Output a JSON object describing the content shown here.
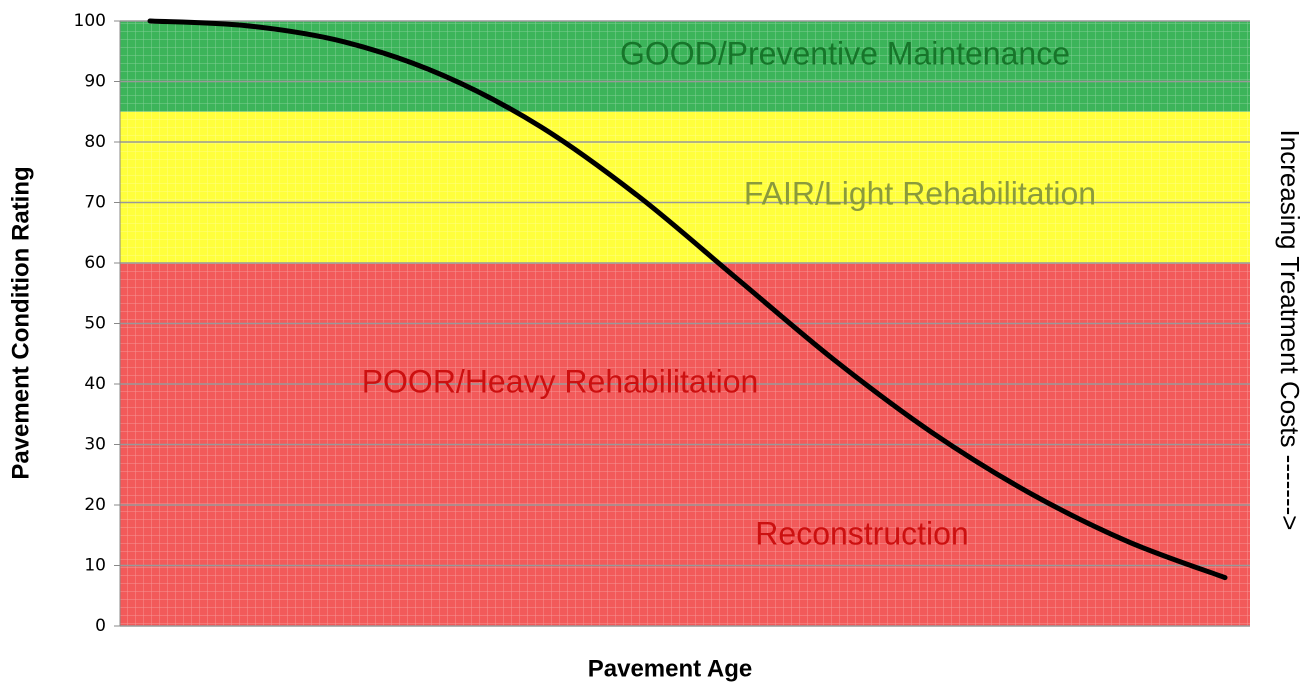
{
  "chart_data": {
    "type": "line",
    "x_label": "Pavement Age",
    "y_label": "Pavement Condition Rating",
    "side_note": "Increasing Treatment Costs ------->",
    "categories": [
      null,
      null,
      null,
      null,
      null,
      null,
      null,
      null,
      null,
      null,
      null,
      null
    ],
    "series": [
      {
        "color": "#000000",
        "values": [
          100,
          99.2,
          96.5,
          91,
          82.5,
          71,
          57.5,
          44,
          32,
          22,
          14,
          8
        ]
      }
    ],
    "ylim": [
      0,
      100
    ],
    "yticks": [
      0,
      10,
      20,
      30,
      40,
      50,
      60,
      70,
      80,
      90,
      100
    ],
    "grid": true,
    "bands": [
      {
        "from": 85,
        "to": 100,
        "color": "#3cb45a"
      },
      {
        "from": 60,
        "to": 85,
        "color": "#ffff3c"
      },
      {
        "from": 0,
        "to": 60,
        "color": "#f25a5a"
      }
    ],
    "annotations": [
      {
        "text": "GOOD/Preventive Maintenance",
        "color": "#17752a"
      },
      {
        "text": "FAIR/Light Rehabilitation",
        "color": "#8a9a3c"
      },
      {
        "text": "POOR/Heavy Rehabilitation",
        "color": "#cc1010"
      },
      {
        "text": "Reconstruction",
        "color": "#cc1010"
      }
    ]
  }
}
